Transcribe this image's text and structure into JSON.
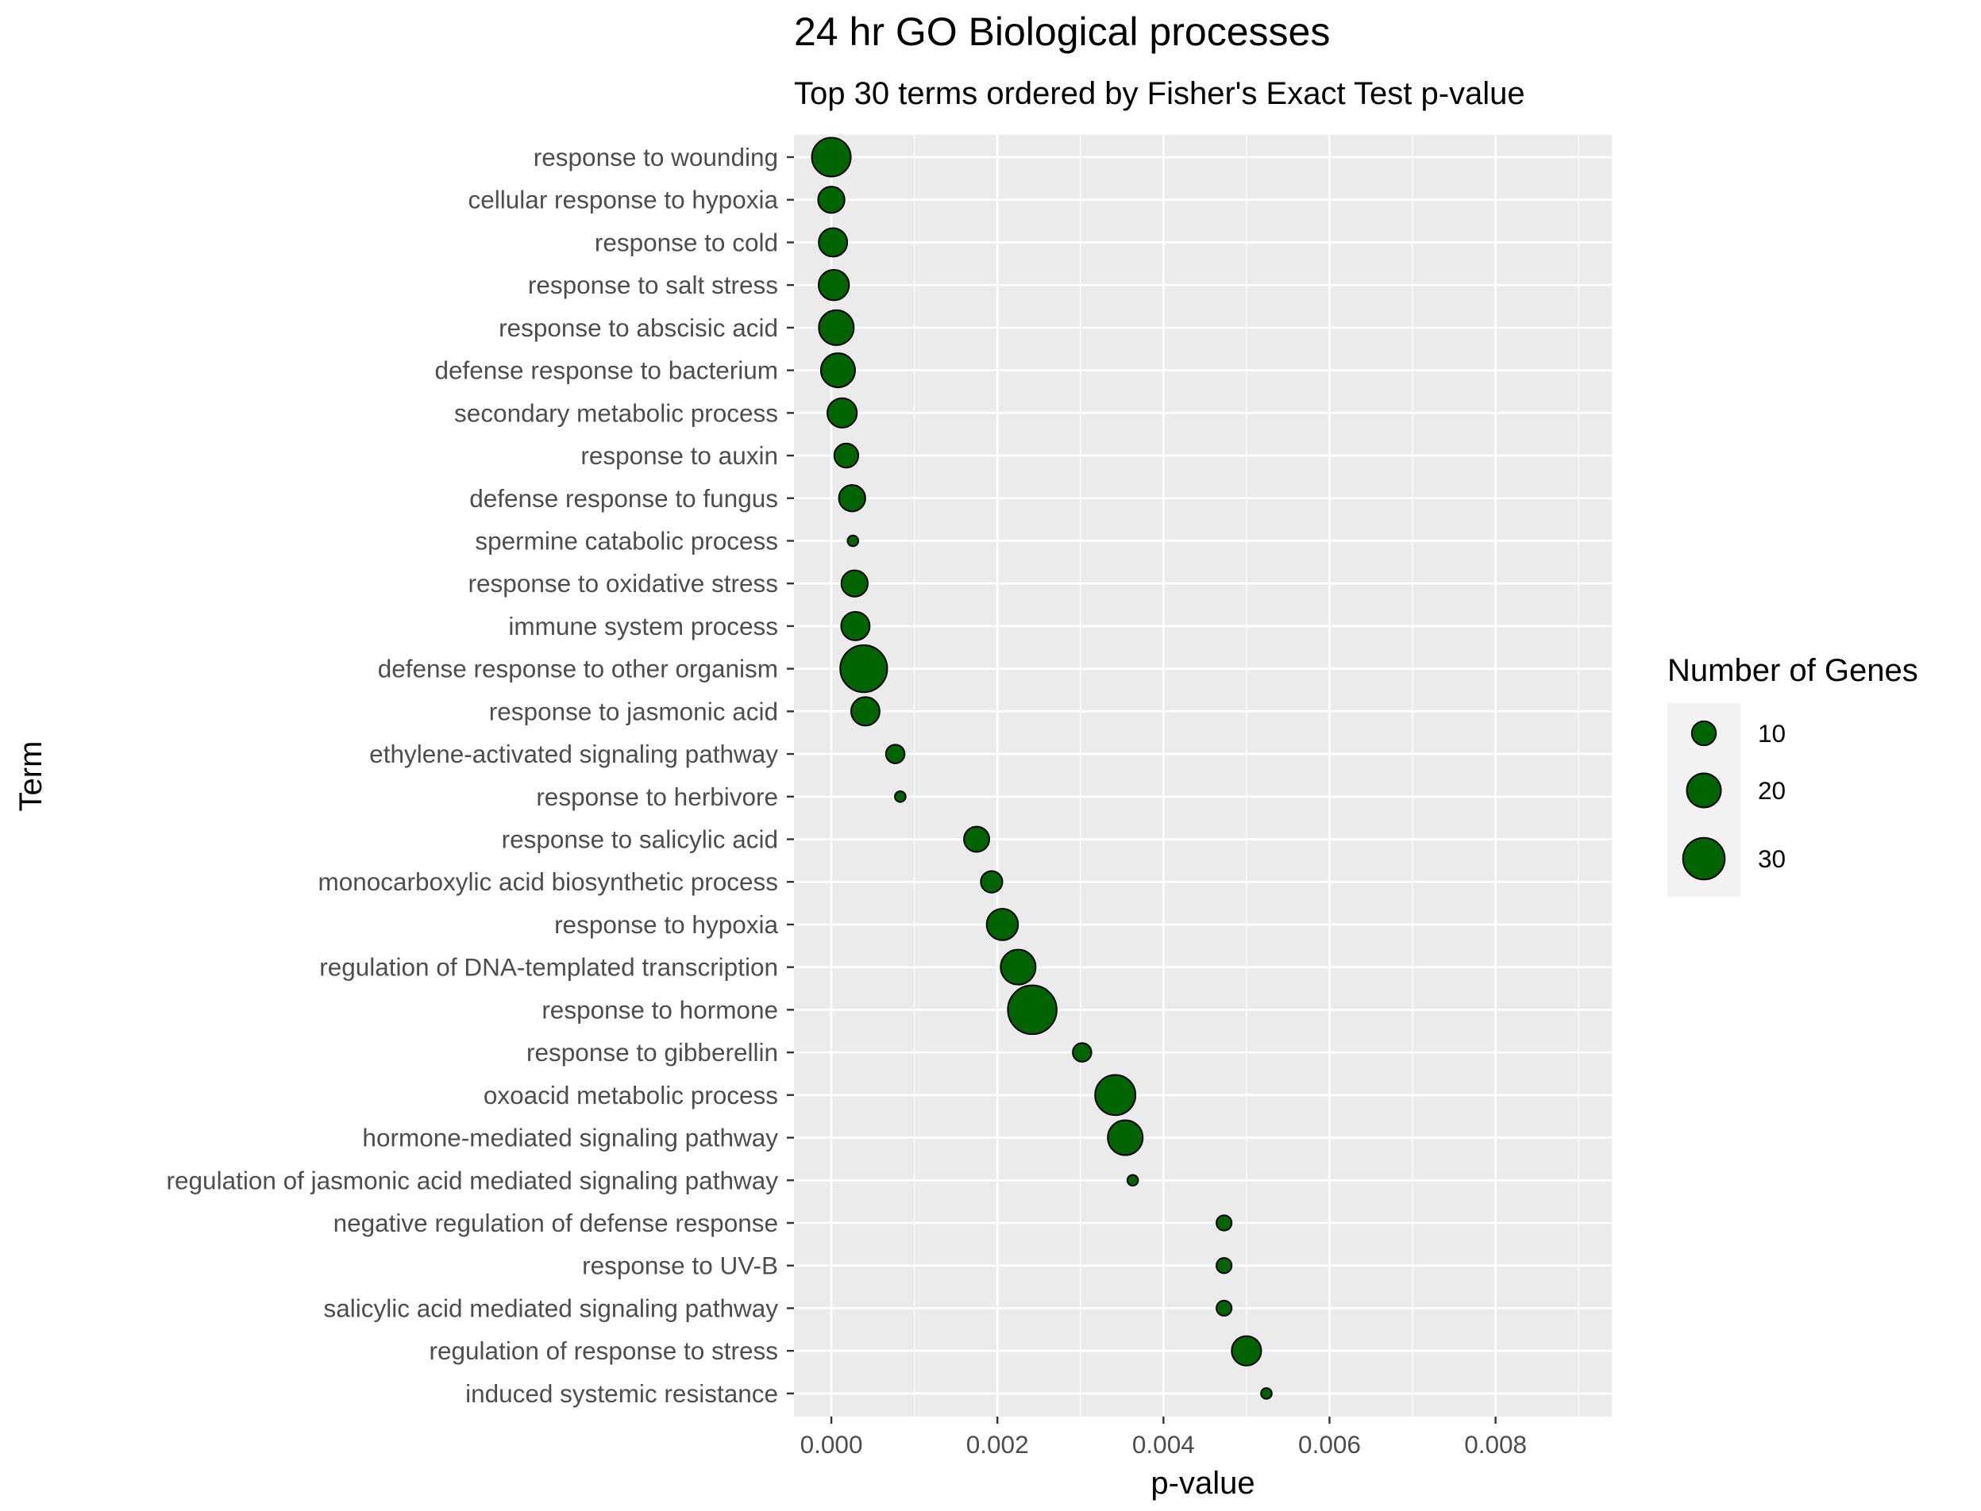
{
  "chart_data": {
    "type": "scatter",
    "title": "24 hr GO Biological processes",
    "subtitle": "Top 30 terms ordered by Fisher's Exact Test p-value",
    "xlabel": "p-value",
    "ylabel": "Term",
    "xlim": [
      -0.00045,
      0.0094
    ],
    "x_ticks": [
      0.0,
      0.002,
      0.004,
      0.006,
      0.008
    ],
    "x_tick_labels": [
      "0.000",
      "0.002",
      "0.004",
      "0.006",
      "0.008"
    ],
    "grid": true,
    "point_color": "#006400",
    "point_stroke": "#000000",
    "panel_background": "#ebebeb",
    "grid_color": "#ffffff",
    "size_variable": "Number of Genes",
    "points": [
      {
        "term": "response to wounding",
        "p_value": 0.0,
        "genes": 26
      },
      {
        "term": "cellular response to hypoxia",
        "p_value": 0.0,
        "genes": 12
      },
      {
        "term": "response to cold",
        "p_value": 2e-05,
        "genes": 14
      },
      {
        "term": "response to salt stress",
        "p_value": 3e-05,
        "genes": 16
      },
      {
        "term": "response to abscisic acid",
        "p_value": 6e-05,
        "genes": 21
      },
      {
        "term": "defense response to bacterium",
        "p_value": 8e-05,
        "genes": 20
      },
      {
        "term": "secondary metabolic process",
        "p_value": 0.00013,
        "genes": 15
      },
      {
        "term": "response to auxin",
        "p_value": 0.00018,
        "genes": 10
      },
      {
        "term": "defense response to fungus",
        "p_value": 0.00025,
        "genes": 12
      },
      {
        "term": "spermine catabolic process",
        "p_value": 0.00026,
        "genes": 2
      },
      {
        "term": "response to oxidative stress",
        "p_value": 0.00028,
        "genes": 12
      },
      {
        "term": "immune system process",
        "p_value": 0.00029,
        "genes": 14
      },
      {
        "term": "defense response to other organism",
        "p_value": 0.00039,
        "genes": 38
      },
      {
        "term": "response to jasmonic acid",
        "p_value": 0.00041,
        "genes": 14
      },
      {
        "term": "ethylene-activated signaling pathway",
        "p_value": 0.00077,
        "genes": 6
      },
      {
        "term": "response to herbivore",
        "p_value": 0.00083,
        "genes": 2
      },
      {
        "term": "response to salicylic acid",
        "p_value": 0.00175,
        "genes": 11
      },
      {
        "term": "monocarboxylic acid biosynthetic process",
        "p_value": 0.00193,
        "genes": 8
      },
      {
        "term": "response to hypoxia",
        "p_value": 0.00206,
        "genes": 17
      },
      {
        "term": "regulation of DNA-templated transcription",
        "p_value": 0.00225,
        "genes": 21
      },
      {
        "term": "response to hormone",
        "p_value": 0.00242,
        "genes": 41
      },
      {
        "term": "response to gibberellin",
        "p_value": 0.00302,
        "genes": 6
      },
      {
        "term": "oxoacid metabolic process",
        "p_value": 0.00342,
        "genes": 28
      },
      {
        "term": "hormone-mediated signaling pathway",
        "p_value": 0.00354,
        "genes": 21
      },
      {
        "term": "regulation of jasmonic acid mediated signaling pathway",
        "p_value": 0.00363,
        "genes": 2
      },
      {
        "term": "negative regulation of defense response",
        "p_value": 0.00473,
        "genes": 4
      },
      {
        "term": "response to UV-B",
        "p_value": 0.00473,
        "genes": 4
      },
      {
        "term": "salicylic acid mediated signaling pathway",
        "p_value": 0.00473,
        "genes": 4
      },
      {
        "term": "regulation of response to stress",
        "p_value": 0.005,
        "genes": 15
      },
      {
        "term": "induced systemic resistance",
        "p_value": 0.00524,
        "genes": 2
      }
    ],
    "legend": {
      "title": "Number of Genes",
      "placement": "right",
      "entries": [
        {
          "label": "10",
          "genes": 10
        },
        {
          "label": "20",
          "genes": 20
        },
        {
          "label": "30",
          "genes": 30
        }
      ]
    }
  }
}
